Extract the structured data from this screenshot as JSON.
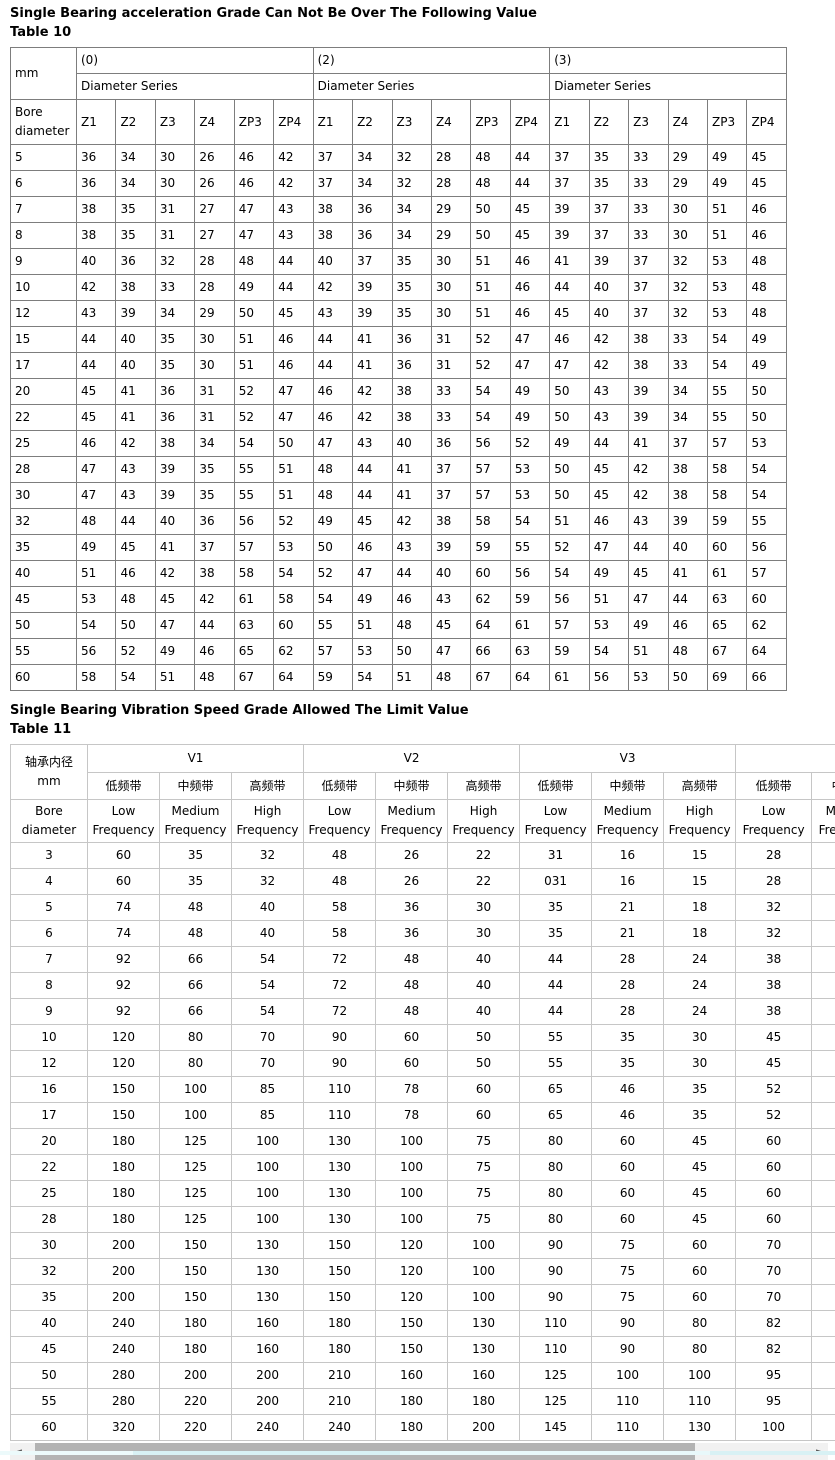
{
  "table10": {
    "title": "Single Bearing acceleration Grade Can Not Be Over The Following Value",
    "label": "Table 10",
    "corner_unit": "mm",
    "row_header": "Bore diameter",
    "groups": [
      {
        "label": "(0)",
        "sub": "Diameter Series"
      },
      {
        "label": "(2)",
        "sub": "Diameter Series"
      },
      {
        "label": "(3)",
        "sub": "Diameter Series"
      }
    ],
    "grade_columns": [
      "Z1",
      "Z2",
      "Z3",
      "Z4",
      "ZP3",
      "ZP4"
    ],
    "rows": [
      {
        "bore": "5",
        "values": [
          "36",
          "34",
          "30",
          "26",
          "46",
          "42",
          "37",
          "34",
          "32",
          "28",
          "48",
          "44",
          "37",
          "35",
          "33",
          "29",
          "49",
          "45"
        ]
      },
      {
        "bore": "6",
        "values": [
          "36",
          "34",
          "30",
          "26",
          "46",
          "42",
          "37",
          "34",
          "32",
          "28",
          "48",
          "44",
          "37",
          "35",
          "33",
          "29",
          "49",
          "45"
        ]
      },
      {
        "bore": "7",
        "values": [
          "38",
          "35",
          "31",
          "27",
          "47",
          "43",
          "38",
          "36",
          "34",
          "29",
          "50",
          "45",
          "39",
          "37",
          "33",
          "30",
          "51",
          "46"
        ]
      },
      {
        "bore": "8",
        "values": [
          "38",
          "35",
          "31",
          "27",
          "47",
          "43",
          "38",
          "36",
          "34",
          "29",
          "50",
          "45",
          "39",
          "37",
          "33",
          "30",
          "51",
          "46"
        ]
      },
      {
        "bore": "9",
        "values": [
          "40",
          "36",
          "32",
          "28",
          "48",
          "44",
          "40",
          "37",
          "35",
          "30",
          "51",
          "46",
          "41",
          "39",
          "37",
          "32",
          "53",
          "48"
        ]
      },
      {
        "bore": "10",
        "values": [
          "42",
          "38",
          "33",
          "28",
          "49",
          "44",
          "42",
          "39",
          "35",
          "30",
          "51",
          "46",
          "44",
          "40",
          "37",
          "32",
          "53",
          "48"
        ]
      },
      {
        "bore": "12",
        "values": [
          "43",
          "39",
          "34",
          "29",
          "50",
          "45",
          "43",
          "39",
          "35",
          "30",
          "51",
          "46",
          "45",
          "40",
          "37",
          "32",
          "53",
          "48"
        ]
      },
      {
        "bore": "15",
        "values": [
          "44",
          "40",
          "35",
          "30",
          "51",
          "46",
          "44",
          "41",
          "36",
          "31",
          "52",
          "47",
          "46",
          "42",
          "38",
          "33",
          "54",
          "49"
        ]
      },
      {
        "bore": "17",
        "values": [
          "44",
          "40",
          "35",
          "30",
          "51",
          "46",
          "44",
          "41",
          "36",
          "31",
          "52",
          "47",
          "47",
          "42",
          "38",
          "33",
          "54",
          "49"
        ]
      },
      {
        "bore": "20",
        "values": [
          "45",
          "41",
          "36",
          "31",
          "52",
          "47",
          "46",
          "42",
          "38",
          "33",
          "54",
          "49",
          "50",
          "43",
          "39",
          "34",
          "55",
          "50"
        ]
      },
      {
        "bore": "22",
        "values": [
          "45",
          "41",
          "36",
          "31",
          "52",
          "47",
          "46",
          "42",
          "38",
          "33",
          "54",
          "49",
          "50",
          "43",
          "39",
          "34",
          "55",
          "50"
        ]
      },
      {
        "bore": "25",
        "values": [
          "46",
          "42",
          "38",
          "34",
          "54",
          "50",
          "47",
          "43",
          "40",
          "36",
          "56",
          "52",
          "49",
          "44",
          "41",
          "37",
          "57",
          "53"
        ]
      },
      {
        "bore": "28",
        "values": [
          "47",
          "43",
          "39",
          "35",
          "55",
          "51",
          "48",
          "44",
          "41",
          "37",
          "57",
          "53",
          "50",
          "45",
          "42",
          "38",
          "58",
          "54"
        ]
      },
      {
        "bore": "30",
        "values": [
          "47",
          "43",
          "39",
          "35",
          "55",
          "51",
          "48",
          "44",
          "41",
          "37",
          "57",
          "53",
          "50",
          "45",
          "42",
          "38",
          "58",
          "54"
        ]
      },
      {
        "bore": "32",
        "values": [
          "48",
          "44",
          "40",
          "36",
          "56",
          "52",
          "49",
          "45",
          "42",
          "38",
          "58",
          "54",
          "51",
          "46",
          "43",
          "39",
          "59",
          "55"
        ]
      },
      {
        "bore": "35",
        "values": [
          "49",
          "45",
          "41",
          "37",
          "57",
          "53",
          "50",
          "46",
          "43",
          "39",
          "59",
          "55",
          "52",
          "47",
          "44",
          "40",
          "60",
          "56"
        ]
      },
      {
        "bore": "40",
        "values": [
          "51",
          "46",
          "42",
          "38",
          "58",
          "54",
          "52",
          "47",
          "44",
          "40",
          "60",
          "56",
          "54",
          "49",
          "45",
          "41",
          "61",
          "57"
        ]
      },
      {
        "bore": "45",
        "values": [
          "53",
          "48",
          "45",
          "42",
          "61",
          "58",
          "54",
          "49",
          "46",
          "43",
          "62",
          "59",
          "56",
          "51",
          "47",
          "44",
          "63",
          "60"
        ]
      },
      {
        "bore": "50",
        "values": [
          "54",
          "50",
          "47",
          "44",
          "63",
          "60",
          "55",
          "51",
          "48",
          "45",
          "64",
          "61",
          "57",
          "53",
          "49",
          "46",
          "65",
          "62"
        ]
      },
      {
        "bore": "55",
        "values": [
          "56",
          "52",
          "49",
          "46",
          "65",
          "62",
          "57",
          "53",
          "50",
          "47",
          "66",
          "63",
          "59",
          "54",
          "51",
          "48",
          "67",
          "64"
        ]
      },
      {
        "bore": "60",
        "values": [
          "58",
          "54",
          "51",
          "48",
          "67",
          "64",
          "59",
          "54",
          "51",
          "48",
          "67",
          "64",
          "61",
          "56",
          "53",
          "50",
          "69",
          "66"
        ]
      }
    ]
  },
  "table11": {
    "title": "Single Bearing Vibration Speed Grade Allowed The Limit Value",
    "label": "Table 11",
    "corner_zh": "轴承内径",
    "corner_unit": "mm",
    "row_header": "Bore diameter",
    "groups": [
      "V1",
      "V2",
      "V3"
    ],
    "freq_zh": [
      "低频带",
      "中频带",
      "高频带"
    ],
    "freq_en": [
      "Low Frequency",
      "Medium Frequency",
      "High Frequency"
    ],
    "extra_group": {
      "zh": "低频带",
      "en": "Low Frequency"
    },
    "clipped_column": {
      "zh": "中频带",
      "en": "Medium Frequency"
    },
    "rows": [
      {
        "bore": "3",
        "values": [
          "60",
          "35",
          "32",
          "48",
          "26",
          "22",
          "31",
          "16",
          "15",
          "28"
        ]
      },
      {
        "bore": "4",
        "values": [
          "60",
          "35",
          "32",
          "48",
          "26",
          "22",
          "031",
          "16",
          "15",
          "28"
        ]
      },
      {
        "bore": "5",
        "values": [
          "74",
          "48",
          "40",
          "58",
          "36",
          "30",
          "35",
          "21",
          "18",
          "32"
        ]
      },
      {
        "bore": "6",
        "values": [
          "74",
          "48",
          "40",
          "58",
          "36",
          "30",
          "35",
          "21",
          "18",
          "32"
        ]
      },
      {
        "bore": "7",
        "values": [
          "92",
          "66",
          "54",
          "72",
          "48",
          "40",
          "44",
          "28",
          "24",
          "38"
        ]
      },
      {
        "bore": "8",
        "values": [
          "92",
          "66",
          "54",
          "72",
          "48",
          "40",
          "44",
          "28",
          "24",
          "38"
        ]
      },
      {
        "bore": "9",
        "values": [
          "92",
          "66",
          "54",
          "72",
          "48",
          "40",
          "44",
          "28",
          "24",
          "38"
        ]
      },
      {
        "bore": "10",
        "values": [
          "120",
          "80",
          "70",
          "90",
          "60",
          "50",
          "55",
          "35",
          "30",
          "45"
        ]
      },
      {
        "bore": "12",
        "values": [
          "120",
          "80",
          "70",
          "90",
          "60",
          "50",
          "55",
          "35",
          "30",
          "45"
        ]
      },
      {
        "bore": "16",
        "values": [
          "150",
          "100",
          "85",
          "110",
          "78",
          "60",
          "65",
          "46",
          "35",
          "52"
        ]
      },
      {
        "bore": "17",
        "values": [
          "150",
          "100",
          "85",
          "110",
          "78",
          "60",
          "65",
          "46",
          "35",
          "52"
        ]
      },
      {
        "bore": "20",
        "values": [
          "180",
          "125",
          "100",
          "130",
          "100",
          "75",
          "80",
          "60",
          "45",
          "60"
        ]
      },
      {
        "bore": "22",
        "values": [
          "180",
          "125",
          "100",
          "130",
          "100",
          "75",
          "80",
          "60",
          "45",
          "60"
        ]
      },
      {
        "bore": "25",
        "values": [
          "180",
          "125",
          "100",
          "130",
          "100",
          "75",
          "80",
          "60",
          "45",
          "60"
        ]
      },
      {
        "bore": "28",
        "values": [
          "180",
          "125",
          "100",
          "130",
          "100",
          "75",
          "80",
          "60",
          "45",
          "60"
        ]
      },
      {
        "bore": "30",
        "values": [
          "200",
          "150",
          "130",
          "150",
          "120",
          "100",
          "90",
          "75",
          "60",
          "70"
        ]
      },
      {
        "bore": "32",
        "values": [
          "200",
          "150",
          "130",
          "150",
          "120",
          "100",
          "90",
          "75",
          "60",
          "70"
        ]
      },
      {
        "bore": "35",
        "values": [
          "200",
          "150",
          "130",
          "150",
          "120",
          "100",
          "90",
          "75",
          "60",
          "70"
        ]
      },
      {
        "bore": "40",
        "values": [
          "240",
          "180",
          "160",
          "180",
          "150",
          "130",
          "110",
          "90",
          "80",
          "82"
        ]
      },
      {
        "bore": "45",
        "values": [
          "240",
          "180",
          "160",
          "180",
          "150",
          "130",
          "110",
          "90",
          "80",
          "82"
        ]
      },
      {
        "bore": "50",
        "values": [
          "280",
          "200",
          "200",
          "210",
          "160",
          "160",
          "125",
          "100",
          "100",
          "95"
        ]
      },
      {
        "bore": "55",
        "values": [
          "280",
          "220",
          "200",
          "210",
          "180",
          "180",
          "125",
          "110",
          "110",
          "95"
        ]
      },
      {
        "bore": "60",
        "values": [
          "320",
          "220",
          "240",
          "240",
          "180",
          "200",
          "145",
          "110",
          "130",
          "100"
        ]
      }
    ]
  },
  "scrollbar": {
    "left_arrow": "◄",
    "right_arrow": "►"
  }
}
